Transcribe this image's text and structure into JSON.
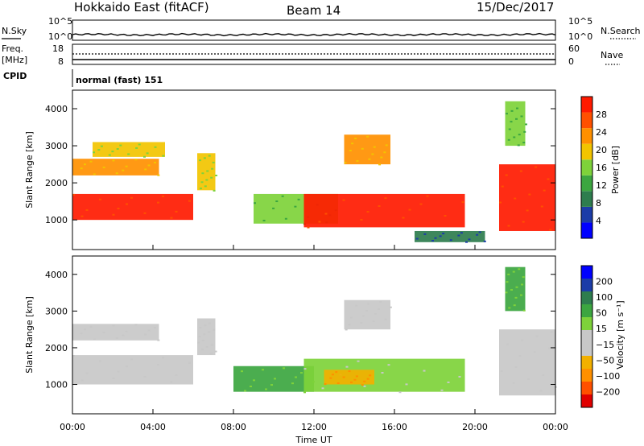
{
  "header": {
    "station": "Hokkaido East (fitACF)",
    "beam": "Beam 14",
    "date": "15/Dec/2017"
  },
  "top_panels": {
    "nsky": {
      "label": "N.Sky",
      "ticks": [
        "10^5",
        "10^0"
      ],
      "right_ticks": [
        "10^5",
        "10^0"
      ],
      "right_label": "N.Search"
    },
    "freq": {
      "label": "Freq.",
      "unit": "[MHz]",
      "ticks": [
        "18",
        "8"
      ],
      "right_ticks": [
        "60",
        "0"
      ],
      "right_label": "Nave"
    },
    "cpid": {
      "label": "CPID",
      "value": "normal (fast) 151"
    }
  },
  "colors": {
    "power_scale": [
      "#0000ff",
      "#1c3ca8",
      "#2e7d4e",
      "#3ca640",
      "#7ed23a",
      "#f2c400",
      "#ff9000",
      "#ff5000",
      "#ff1a00"
    ],
    "velocity_scale": [
      "#e00000",
      "#ff5000",
      "#ff9000",
      "#f2b000",
      "#c8c8c8",
      "#c8c8c8",
      "#7ed23a",
      "#3ca640",
      "#2e7d4e",
      "#1c3ca8",
      "#0000ff"
    ]
  },
  "chart_data": [
    {
      "type": "heatmap",
      "name": "power",
      "xlabel": "",
      "ylabel": "Slant Range [km]",
      "xlim": [
        0,
        24
      ],
      "ylim": [
        200,
        4500
      ],
      "yticks": [
        "1000",
        "2000",
        "3000",
        "4000"
      ],
      "colorbar": {
        "label": "Power",
        "unit": "[dB]",
        "ticks": [
          "4",
          "8",
          "12",
          "16",
          "20",
          "24",
          "28"
        ]
      },
      "regions": [
        {
          "x": [
            0.0,
            6.0
          ],
          "y": [
            1000,
            1700
          ],
          "level": 8
        },
        {
          "x": [
            0.0,
            4.3
          ],
          "y": [
            2200,
            2650
          ],
          "level": 6
        },
        {
          "x": [
            1.0,
            4.6
          ],
          "y": [
            2700,
            3100
          ],
          "level": 5
        },
        {
          "x": [
            6.2,
            7.1
          ],
          "y": [
            1800,
            2800
          ],
          "level": 5
        },
        {
          "x": [
            9.0,
            13.2
          ],
          "y": [
            900,
            1700
          ],
          "level": 4
        },
        {
          "x": [
            11.5,
            19.5
          ],
          "y": [
            800,
            1700
          ],
          "level": 8
        },
        {
          "x": [
            13.5,
            15.8
          ],
          "y": [
            2500,
            3300
          ],
          "level": 6
        },
        {
          "x": [
            17.0,
            20.5
          ],
          "y": [
            400,
            700
          ],
          "level": 2
        },
        {
          "x": [
            21.2,
            24.0
          ],
          "y": [
            700,
            2500
          ],
          "level": 8
        },
        {
          "x": [
            21.5,
            22.5
          ],
          "y": [
            3000,
            4200
          ],
          "level": 4
        }
      ]
    },
    {
      "type": "heatmap",
      "name": "velocity",
      "xlabel": "Time UT",
      "ylabel": "Slant Range [km]",
      "xlim": [
        0,
        24
      ],
      "ylim": [
        200,
        4500
      ],
      "xticks": [
        "00:00",
        "04:00",
        "08:00",
        "12:00",
        "16:00",
        "20:00",
        "00:00"
      ],
      "yticks": [
        "1000",
        "2000",
        "3000",
        "4000"
      ],
      "colorbar": {
        "label": "Velocity",
        "unit": "[m s⁻¹]",
        "ticks": [
          "200",
          "100",
          "50",
          "15",
          "−15",
          "−50",
          "−100",
          "−200"
        ]
      },
      "regions": [
        {
          "x": [
            0.0,
            6.0
          ],
          "y": [
            1000,
            1800
          ],
          "level": 5
        },
        {
          "x": [
            0.0,
            4.3
          ],
          "y": [
            2200,
            2650
          ],
          "level": 5
        },
        {
          "x": [
            6.2,
            7.1
          ],
          "y": [
            1800,
            2800
          ],
          "level": 5
        },
        {
          "x": [
            8.0,
            12.0
          ],
          "y": [
            800,
            1500
          ],
          "level": 7
        },
        {
          "x": [
            11.5,
            19.5
          ],
          "y": [
            800,
            1700
          ],
          "level": 6
        },
        {
          "x": [
            13.5,
            15.8
          ],
          "y": [
            2500,
            3300
          ],
          "level": 5
        },
        {
          "x": [
            12.5,
            15.0
          ],
          "y": [
            1000,
            1400
          ],
          "level": 3
        },
        {
          "x": [
            21.2,
            24.0
          ],
          "y": [
            700,
            2500
          ],
          "level": 5
        },
        {
          "x": [
            21.5,
            22.5
          ],
          "y": [
            3000,
            4200
          ],
          "level": 7
        }
      ]
    }
  ]
}
